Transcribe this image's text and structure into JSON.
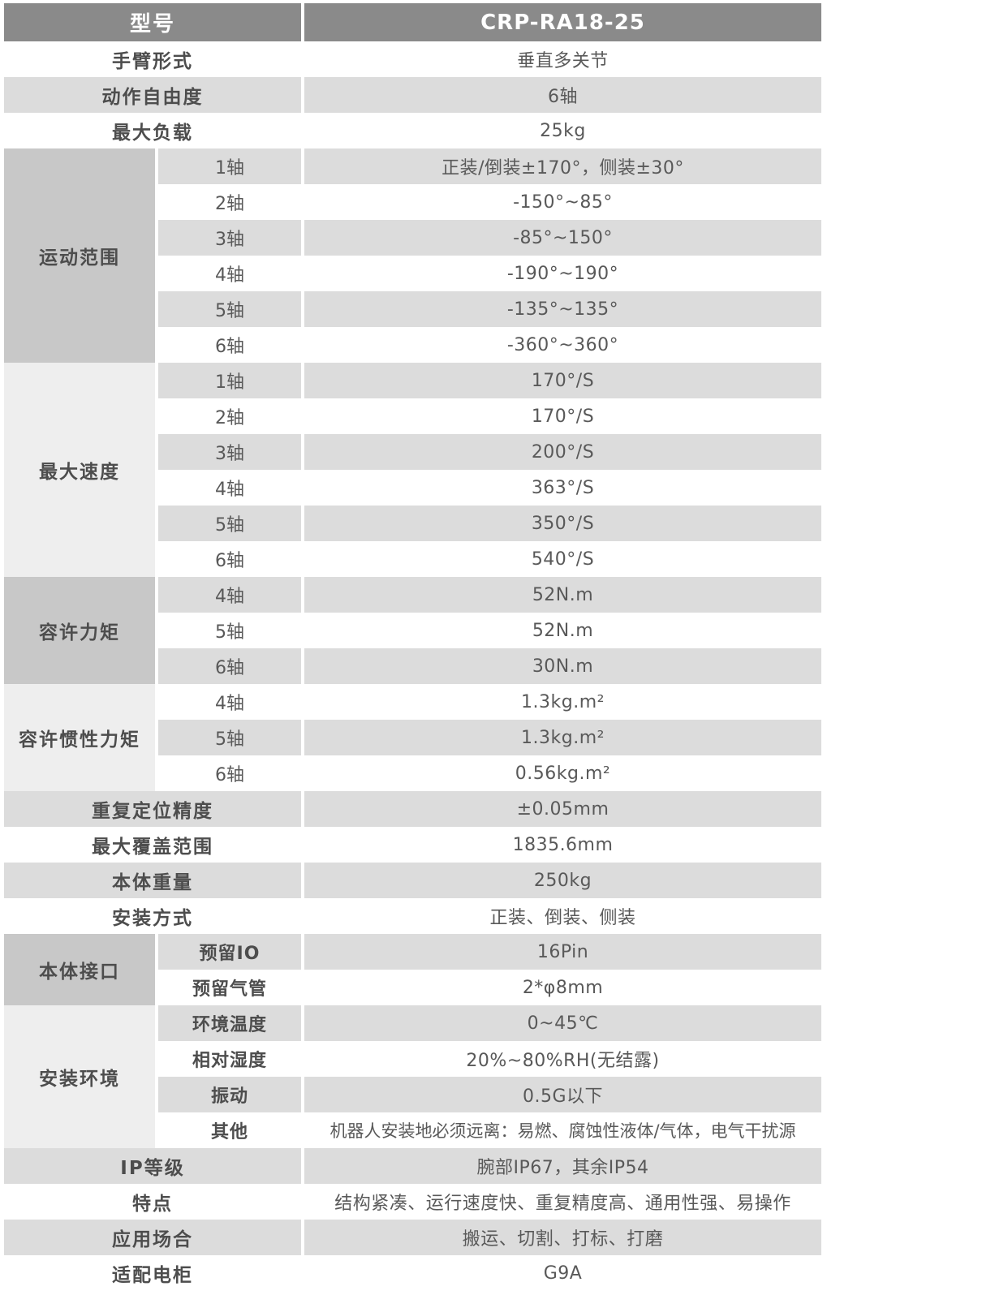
{
  "title_row": {
    "label": "型号",
    "value": "CRP-RA18-25"
  },
  "colors": {
    "header_bg": "#8a8a8a",
    "header_text": "#ffffff",
    "zebra_gray": "#dcdcdc",
    "group_dark": "#c8c8c8",
    "group_light": "#eeeeee",
    "label_text": "#4d4d4d",
    "value_text": "#595959"
  },
  "sections": [
    {
      "type": "simple",
      "label": "手臂形式",
      "value": "垂直多关节"
    },
    {
      "type": "simple",
      "label": "动作自由度",
      "value": "6轴"
    },
    {
      "type": "simple",
      "label": "最大负载",
      "value": "25kg"
    },
    {
      "type": "group",
      "label": "运动范围",
      "shade": "dark",
      "sub_bold": false,
      "rows": [
        {
          "sub": "1轴",
          "value": "正装/倒装±170°，侧装±30°"
        },
        {
          "sub": "2轴",
          "value": "-150°~85°"
        },
        {
          "sub": "3轴",
          "value": "-85°~150°"
        },
        {
          "sub": "4轴",
          "value": "-190°~190°"
        },
        {
          "sub": "5轴",
          "value": "-135°~135°"
        },
        {
          "sub": "6轴",
          "value": "-360°~360°"
        }
      ]
    },
    {
      "type": "group",
      "label": "最大速度",
      "shade": "light",
      "sub_bold": false,
      "rows": [
        {
          "sub": "1轴",
          "value": "170°/S"
        },
        {
          "sub": "2轴",
          "value": "170°/S"
        },
        {
          "sub": "3轴",
          "value": "200°/S"
        },
        {
          "sub": "4轴",
          "value": "363°/S"
        },
        {
          "sub": "5轴",
          "value": "350°/S"
        },
        {
          "sub": "6轴",
          "value": "540°/S"
        }
      ]
    },
    {
      "type": "group",
      "label": "容许力矩",
      "shade": "dark",
      "sub_bold": false,
      "rows": [
        {
          "sub": "4轴",
          "value": "52N.m"
        },
        {
          "sub": "5轴",
          "value": "52N.m"
        },
        {
          "sub": "6轴",
          "value": "30N.m"
        }
      ]
    },
    {
      "type": "group",
      "label": "容许惯性力矩",
      "shade": "light",
      "sub_bold": false,
      "rows": [
        {
          "sub": "4轴",
          "value": "1.3kg.m²"
        },
        {
          "sub": "5轴",
          "value": "1.3kg.m²"
        },
        {
          "sub": "6轴",
          "value": "0.56kg.m²"
        }
      ]
    },
    {
      "type": "simple",
      "label": "重复定位精度",
      "value": "±0.05mm"
    },
    {
      "type": "simple",
      "label": "最大覆盖范围",
      "value": "1835.6mm"
    },
    {
      "type": "simple",
      "label": "本体重量",
      "value": "250kg"
    },
    {
      "type": "simple",
      "label": "安装方式",
      "value": "正装、倒装、侧装"
    },
    {
      "type": "group",
      "label": "本体接口",
      "shade": "dark",
      "sub_bold": true,
      "rows": [
        {
          "sub": "预留IO",
          "value": "16Pin"
        },
        {
          "sub": "预留气管",
          "value": "2*φ8mm"
        }
      ]
    },
    {
      "type": "group",
      "label": "安装环境",
      "shade": "light",
      "sub_bold": true,
      "rows": [
        {
          "sub": "环境温度",
          "value": "0~45℃"
        },
        {
          "sub": "相对湿度",
          "value": "20%~80%RH(无结露)"
        },
        {
          "sub": "振动",
          "value": "0.5G以下"
        },
        {
          "sub": "其他",
          "value": "机器人安装地必须远离：易燃、腐蚀性液体/气体，电气干扰源",
          "long": true
        }
      ]
    },
    {
      "type": "simple",
      "label": "IP等级",
      "value": "腕部IP67，其余IP54"
    },
    {
      "type": "simple",
      "label": "特点",
      "value": "结构紧凑、运行速度快、重复精度高、通用性强、易操作"
    },
    {
      "type": "simple",
      "label": "应用场合",
      "value": "搬运、切割、打标、打磨"
    },
    {
      "type": "simple",
      "label": "适配电柜",
      "value": "G9A"
    }
  ]
}
